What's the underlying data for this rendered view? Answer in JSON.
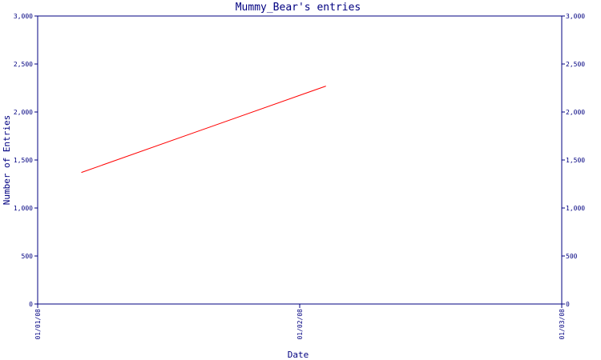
{
  "chart_data": {
    "type": "line",
    "title": "Mummy_Bear's entries",
    "xlabel": "Date",
    "ylabel": "Number of Entries",
    "x_ticks": [
      "01/01/08",
      "01/02/08",
      "01/03/08"
    ],
    "y_ticks": [
      "0",
      "500",
      "1,000",
      "1,500",
      "2,000",
      "2,500",
      "3,000"
    ],
    "ylim": [
      0,
      3000
    ],
    "xlim": [
      "2008-01-01",
      "2008-03-01"
    ],
    "grid": false,
    "series": [
      {
        "x": [
          "2008-01-06",
          "2008-02-03"
        ],
        "values": [
          1370,
          2270
        ]
      }
    ],
    "colors": {
      "axis": "#000080",
      "line": "#ff0000",
      "background": "#ffffff"
    }
  }
}
